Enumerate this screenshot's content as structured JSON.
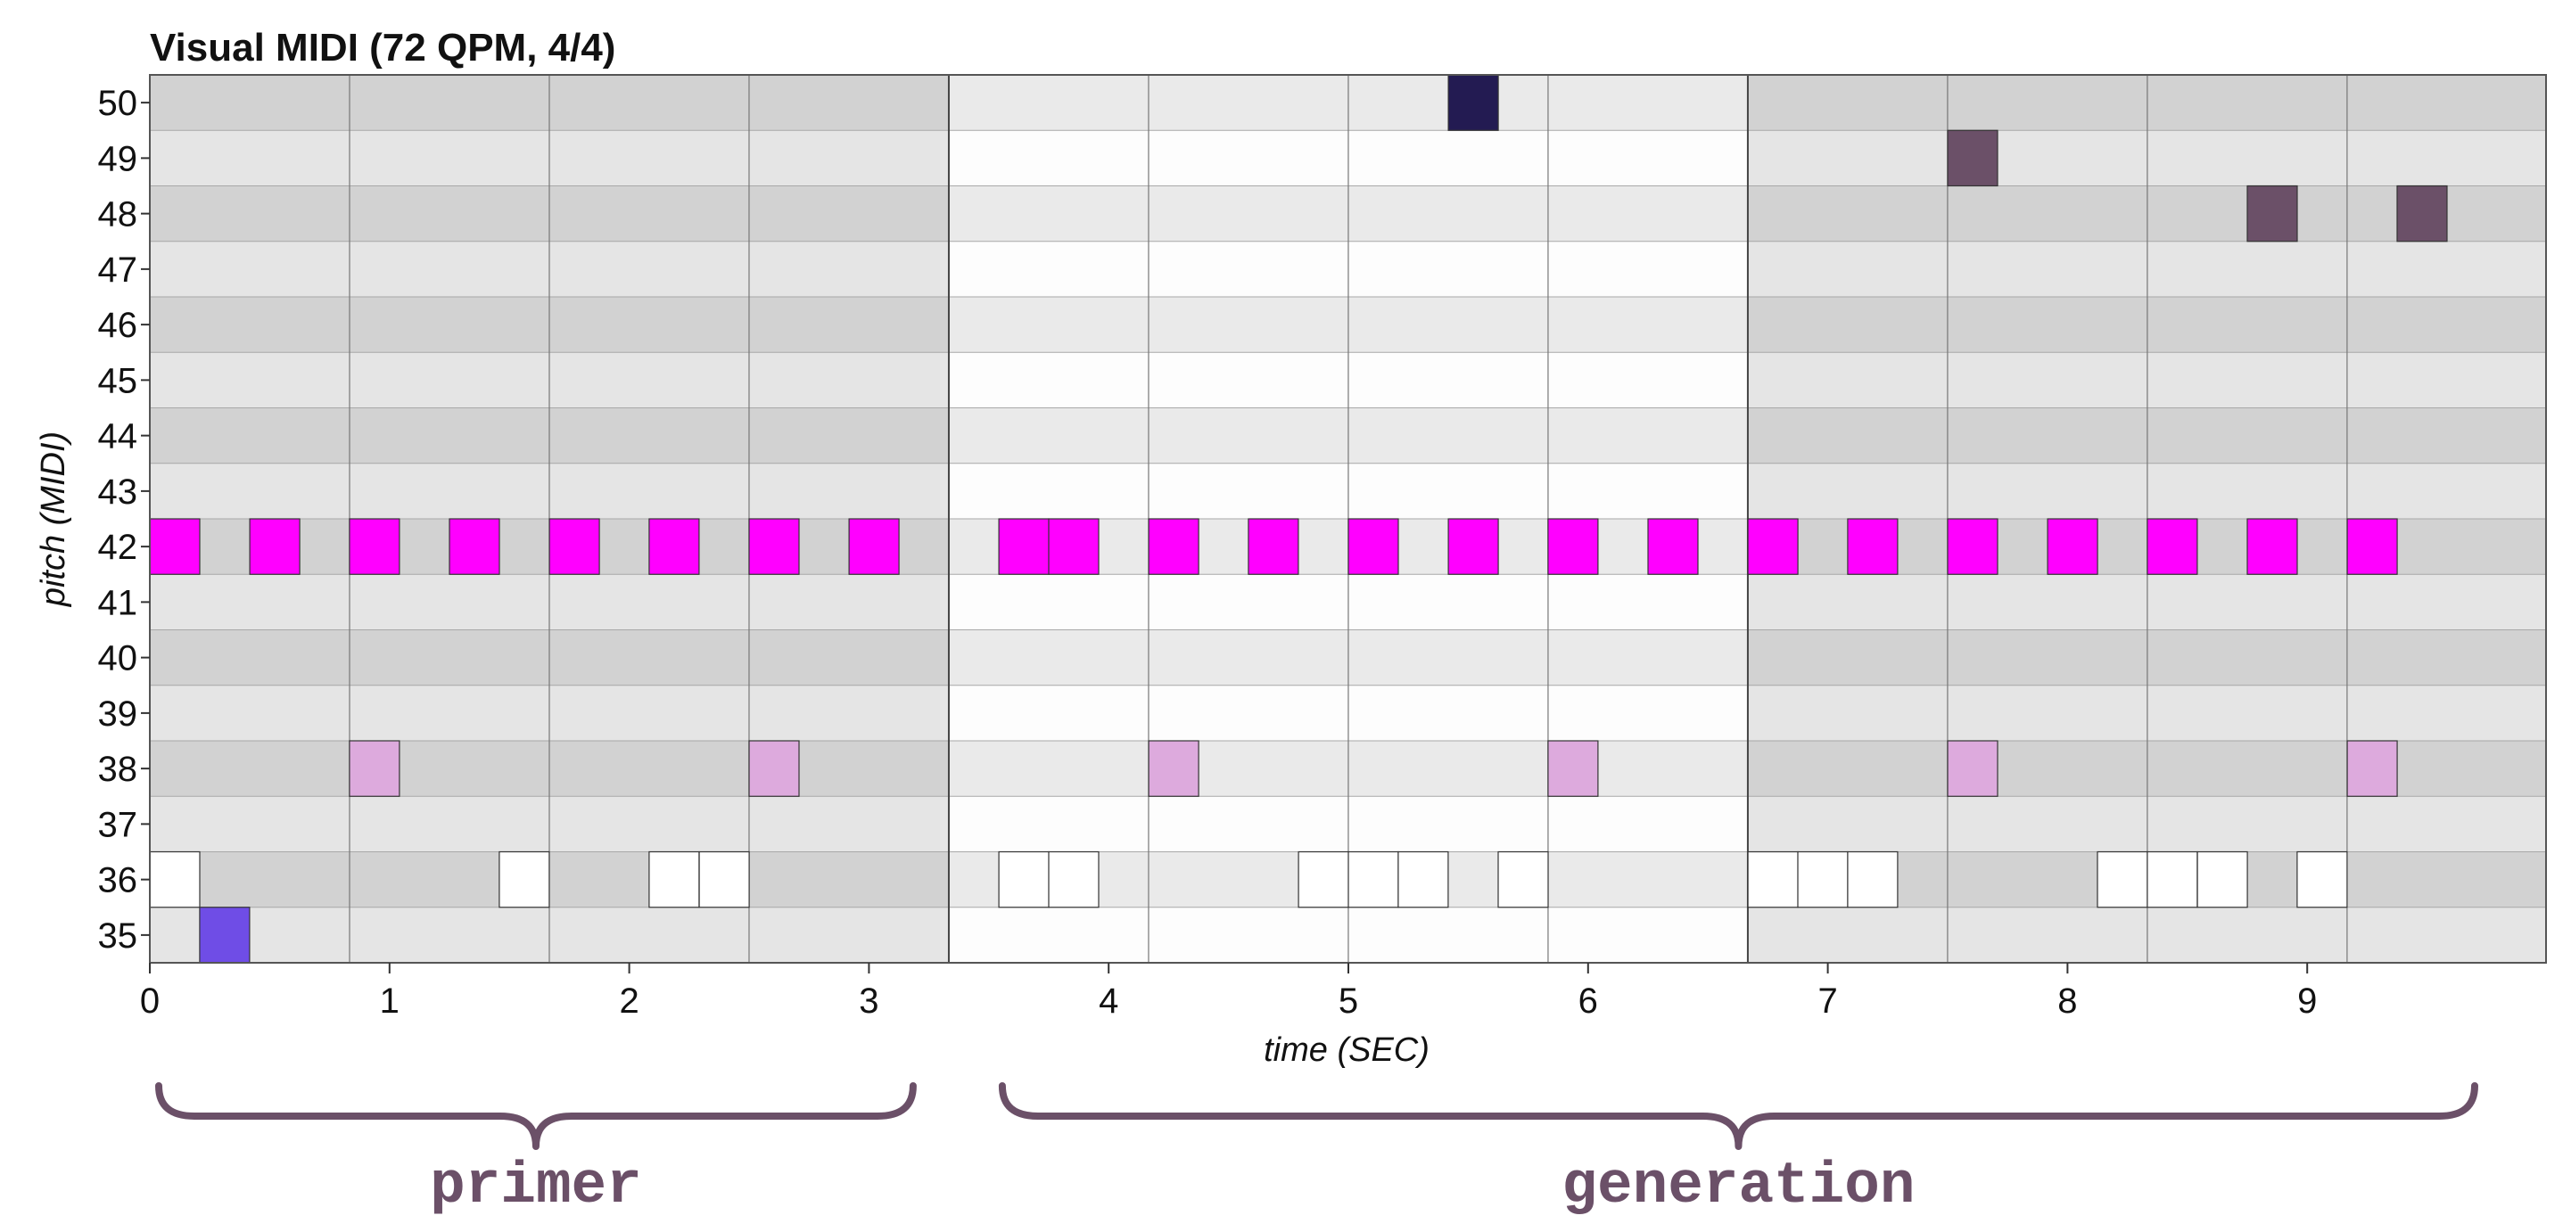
{
  "chart_data": {
    "type": "piano-roll",
    "title": "Visual MIDI (72 QPM, 4/4)",
    "xlabel": "time (SEC)",
    "ylabel": "pitch (MIDI)",
    "xlim": [
      0,
      10.0
    ],
    "ylim": [
      35,
      50
    ],
    "x_ticks": [
      0,
      1,
      2,
      3,
      4,
      5,
      6,
      7,
      8,
      9
    ],
    "y_ticks": [
      35,
      36,
      37,
      38,
      39,
      40,
      41,
      42,
      43,
      44,
      45,
      46,
      47,
      48,
      49,
      50
    ],
    "bar_length_sec": 3.333,
    "beat_length_sec": 0.8333,
    "note_duration_sec": 0.2083,
    "colors": {
      "hihat": "#ff00ff",
      "snare": "#ddaadd",
      "kick": "#ffffff",
      "pitch35": "#6f4de6",
      "pitch48_49": "#6b5068",
      "pitch50": "#231b52",
      "row_even": "#e5e5e5",
      "row_odd": "#d2d2d2",
      "row_even_light": "#fdfdfd",
      "row_odd_light": "#eaeaea",
      "bracket": "#6b5068"
    },
    "notes": [
      {
        "pitch": 42,
        "start": 0.0,
        "color": "#ff00ff"
      },
      {
        "pitch": 42,
        "start": 0.417,
        "color": "#ff00ff"
      },
      {
        "pitch": 42,
        "start": 0.833,
        "color": "#ff00ff"
      },
      {
        "pitch": 42,
        "start": 1.25,
        "color": "#ff00ff"
      },
      {
        "pitch": 42,
        "start": 1.667,
        "color": "#ff00ff"
      },
      {
        "pitch": 42,
        "start": 2.083,
        "color": "#ff00ff"
      },
      {
        "pitch": 42,
        "start": 2.5,
        "color": "#ff00ff"
      },
      {
        "pitch": 42,
        "start": 2.917,
        "color": "#ff00ff"
      },
      {
        "pitch": 42,
        "start": 3.542,
        "color": "#ff00ff"
      },
      {
        "pitch": 42,
        "start": 3.75,
        "color": "#ff00ff"
      },
      {
        "pitch": 42,
        "start": 4.167,
        "color": "#ff00ff"
      },
      {
        "pitch": 42,
        "start": 4.583,
        "color": "#ff00ff"
      },
      {
        "pitch": 42,
        "start": 5.0,
        "color": "#ff00ff"
      },
      {
        "pitch": 42,
        "start": 5.417,
        "color": "#ff00ff"
      },
      {
        "pitch": 42,
        "start": 5.833,
        "color": "#ff00ff"
      },
      {
        "pitch": 42,
        "start": 6.25,
        "color": "#ff00ff"
      },
      {
        "pitch": 42,
        "start": 6.667,
        "color": "#ff00ff"
      },
      {
        "pitch": 42,
        "start": 7.083,
        "color": "#ff00ff"
      },
      {
        "pitch": 42,
        "start": 7.5,
        "color": "#ff00ff"
      },
      {
        "pitch": 42,
        "start": 7.917,
        "color": "#ff00ff"
      },
      {
        "pitch": 42,
        "start": 8.333,
        "color": "#ff00ff"
      },
      {
        "pitch": 42,
        "start": 8.75,
        "color": "#ff00ff"
      },
      {
        "pitch": 42,
        "start": 9.167,
        "color": "#ff00ff"
      },
      {
        "pitch": 38,
        "start": 0.833,
        "color": "#ddaadd"
      },
      {
        "pitch": 38,
        "start": 2.5,
        "color": "#ddaadd"
      },
      {
        "pitch": 38,
        "start": 4.167,
        "color": "#ddaadd"
      },
      {
        "pitch": 38,
        "start": 5.833,
        "color": "#ddaadd"
      },
      {
        "pitch": 38,
        "start": 7.5,
        "color": "#ddaadd"
      },
      {
        "pitch": 38,
        "start": 9.167,
        "color": "#ddaadd"
      },
      {
        "pitch": 36,
        "start": 0.0,
        "color": "#ffffff"
      },
      {
        "pitch": 36,
        "start": 1.458,
        "color": "#ffffff"
      },
      {
        "pitch": 36,
        "start": 2.083,
        "color": "#ffffff"
      },
      {
        "pitch": 36,
        "start": 2.292,
        "color": "#ffffff"
      },
      {
        "pitch": 36,
        "start": 3.542,
        "color": "#ffffff"
      },
      {
        "pitch": 36,
        "start": 3.75,
        "color": "#ffffff"
      },
      {
        "pitch": 36,
        "start": 4.792,
        "color": "#ffffff"
      },
      {
        "pitch": 36,
        "start": 5.0,
        "color": "#ffffff"
      },
      {
        "pitch": 36,
        "start": 5.208,
        "color": "#ffffff"
      },
      {
        "pitch": 36,
        "start": 5.625,
        "color": "#ffffff"
      },
      {
        "pitch": 36,
        "start": 6.667,
        "color": "#ffffff"
      },
      {
        "pitch": 36,
        "start": 6.875,
        "color": "#ffffff"
      },
      {
        "pitch": 36,
        "start": 7.083,
        "color": "#ffffff"
      },
      {
        "pitch": 36,
        "start": 8.125,
        "color": "#ffffff"
      },
      {
        "pitch": 36,
        "start": 8.333,
        "color": "#ffffff"
      },
      {
        "pitch": 36,
        "start": 8.542,
        "color": "#ffffff"
      },
      {
        "pitch": 36,
        "start": 8.958,
        "color": "#ffffff"
      },
      {
        "pitch": 35,
        "start": 0.208,
        "color": "#6f4de6"
      },
      {
        "pitch": 50,
        "start": 5.417,
        "color": "#231b52"
      },
      {
        "pitch": 49,
        "start": 7.5,
        "color": "#6b5068"
      },
      {
        "pitch": 48,
        "start": 8.75,
        "color": "#6b5068"
      },
      {
        "pitch": 48,
        "start": 9.375,
        "color": "#6b5068"
      }
    ],
    "sections": [
      {
        "label": "primer",
        "start": 0.0,
        "end": 3.333
      },
      {
        "label": "generation",
        "start": 3.333,
        "end": 10.0
      }
    ]
  }
}
